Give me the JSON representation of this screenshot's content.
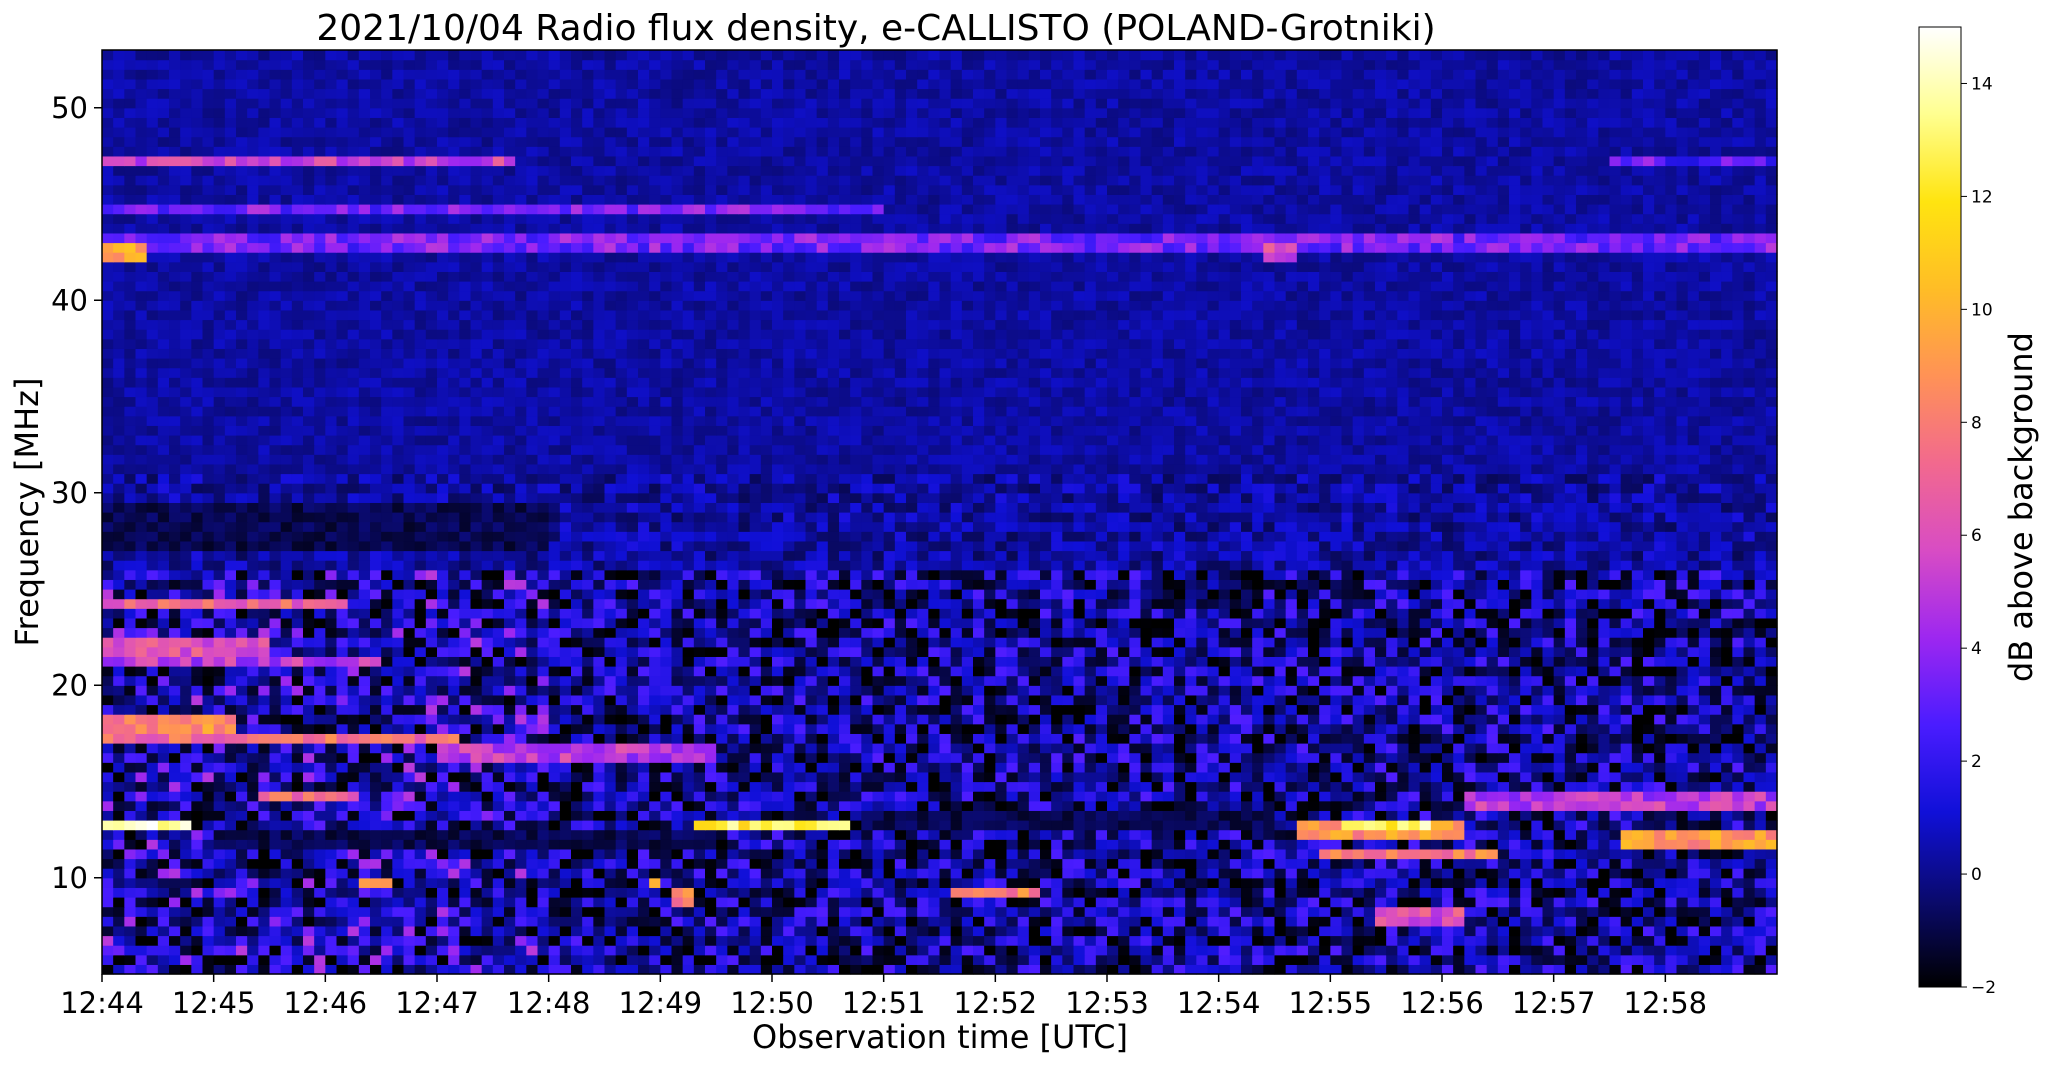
{
  "chart_data": {
    "type": "heatmap",
    "title": "2021/10/04  Radio flux density, e-CALLISTO (POLAND-Grotniki)",
    "xlabel": "Observation time [UTC]",
    "ylabel": "Frequency [MHz]",
    "x_tick_labels": [
      "12:44",
      "12:45",
      "12:46",
      "12:47",
      "12:48",
      "12:49",
      "12:50",
      "12:51",
      "12:52",
      "12:53",
      "12:54",
      "12:55",
      "12:56",
      "12:57",
      "12:58"
    ],
    "xlim_minutes": [
      0,
      15
    ],
    "y_ticks": [
      10,
      20,
      30,
      40,
      50
    ],
    "ylim": [
      5,
      53
    ],
    "grid": false,
    "colormap": "gnuplot2",
    "colorbar": {
      "label": "dB above background",
      "ticks": [
        -2,
        0,
        2,
        4,
        6,
        8,
        10,
        12,
        14
      ],
      "range": [
        -2,
        15
      ],
      "stops": [
        "#000000",
        "#0a0a6e",
        "#1010d8",
        "#4a1cff",
        "#9d27f0",
        "#d84cc4",
        "#f2698e",
        "#ff9256",
        "#ffbd26",
        "#ffe410",
        "#ffff90",
        "#ffffff"
      ]
    },
    "base_level_db": 0.3,
    "bands": [
      {
        "freq": 47.2,
        "start": 0.0,
        "end": 3.7,
        "db": 5.5
      },
      {
        "freq": 47.2,
        "start": 3.7,
        "end": 13.5,
        "db": -1.5
      },
      {
        "freq": 47.2,
        "start": 13.5,
        "end": 15.0,
        "db": 3.0
      },
      {
        "freq": 44.8,
        "start": 0.0,
        "end": 7.0,
        "db": 3.5
      },
      {
        "freq": 44.6,
        "start": 11.5,
        "end": 15.0,
        "db": -1.5
      },
      {
        "freq": 43.0,
        "start": 0.0,
        "end": 15.0,
        "db": 3.5
      },
      {
        "freq": 42.6,
        "start": 0.0,
        "end": 0.45,
        "db": 9.5
      },
      {
        "freq": 42.6,
        "start": 10.4,
        "end": 10.7,
        "db": 6.0
      },
      {
        "freq": 24.2,
        "start": 0.0,
        "end": 2.2,
        "db": 7.0
      },
      {
        "freq": 22.0,
        "start": 0.0,
        "end": 1.5,
        "db": 6.0
      },
      {
        "freq": 21.3,
        "start": 0.0,
        "end": 2.5,
        "db": 5.0
      },
      {
        "freq": 18.0,
        "start": 0.0,
        "end": 1.2,
        "db": 8.5
      },
      {
        "freq": 17.2,
        "start": 0.0,
        "end": 3.2,
        "db": 7.5
      },
      {
        "freq": 16.5,
        "start": 3.0,
        "end": 5.5,
        "db": 5.0
      },
      {
        "freq": 14.3,
        "start": 1.4,
        "end": 2.3,
        "db": 7.5
      },
      {
        "freq": 14.1,
        "start": 12.2,
        "end": 15.0,
        "db": 5.0
      },
      {
        "freq": 12.8,
        "start": 0.0,
        "end": 0.85,
        "db": 14.5
      },
      {
        "freq": 12.8,
        "start": 5.3,
        "end": 6.7,
        "db": 12.5
      },
      {
        "freq": 12.7,
        "start": 11.1,
        "end": 11.9,
        "db": 13.0
      },
      {
        "freq": 12.5,
        "start": 10.7,
        "end": 12.2,
        "db": 9.0
      },
      {
        "freq": 11.9,
        "start": 13.6,
        "end": 15.0,
        "db": 9.0
      },
      {
        "freq": 11.2,
        "start": 10.9,
        "end": 12.5,
        "db": 8.0
      },
      {
        "freq": 9.7,
        "start": 2.3,
        "end": 2.6,
        "db": 9.0
      },
      {
        "freq": 9.7,
        "start": 4.9,
        "end": 5.0,
        "db": 11.0
      },
      {
        "freq": 9.3,
        "start": 7.6,
        "end": 8.4,
        "db": 8.0
      },
      {
        "freq": 8.9,
        "start": 5.1,
        "end": 5.3,
        "db": 8.0
      },
      {
        "freq": 8.0,
        "start": 11.4,
        "end": 12.2,
        "db": 6.0
      }
    ],
    "dark_bands": [
      {
        "f1": 11.2,
        "f2": 12.3,
        "start": 1.0,
        "end": 5.5
      },
      {
        "f1": 12.2,
        "f2": 13.2,
        "start": 6.8,
        "end": 10.5
      },
      {
        "f1": 27.0,
        "f2": 29.5,
        "start": 0.0,
        "end": 4.0
      }
    ]
  }
}
